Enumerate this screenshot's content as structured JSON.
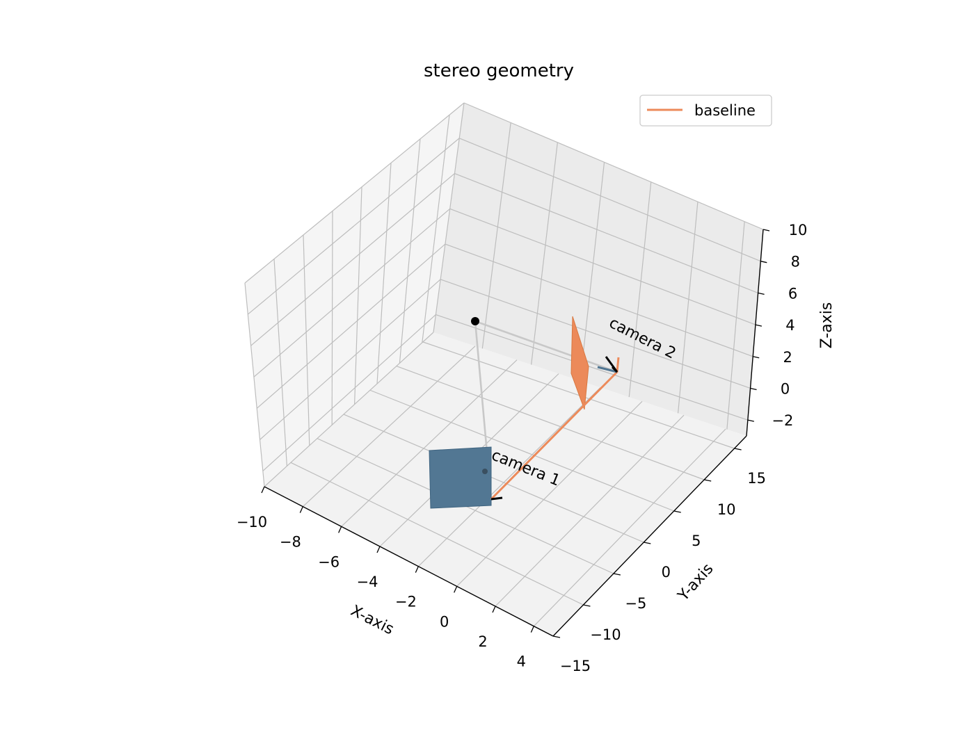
{
  "chart_data": {
    "type": "3d-line",
    "title": "stereo geometry",
    "xlabel": "X-axis",
    "ylabel": "Y-axis",
    "zlabel": "Z-axis",
    "xlim": [
      -10,
      5
    ],
    "ylim": [
      -15,
      17
    ],
    "zlim": [
      -3,
      10
    ],
    "x_ticks": [
      "−10",
      "−8",
      "−6",
      "−4",
      "−2",
      "0",
      "2",
      "4"
    ],
    "y_ticks": [
      "−15",
      "−10",
      "−5",
      "0",
      "5",
      "10",
      "15"
    ],
    "z_ticks": [
      "−2",
      "0",
      "2",
      "4",
      "6",
      "8",
      "10"
    ],
    "grid": true,
    "legend_position": "top-right",
    "series": [
      {
        "name": "baseline",
        "color": "#ec8a5a",
        "points": [
          [
            0,
            0,
            0
          ],
          [
            3,
            12,
            0.5
          ],
          [
            3,
            12,
            1.5
          ]
        ]
      }
    ],
    "world_point": {
      "xyz": [
        -8,
        6,
        1
      ],
      "color": "#000000"
    },
    "projection_rays": [
      {
        "from": [
          -8,
          6,
          1
        ],
        "to": [
          0,
          0,
          0
        ],
        "color": "#c8c8c8"
      },
      {
        "from": [
          -8,
          6,
          1
        ],
        "to": [
          3,
          12,
          0
        ],
        "color": "#c8c8c8"
      }
    ],
    "cameras": [
      {
        "label": "camera 1",
        "position": [
          0,
          0,
          0
        ],
        "plane_color": "#527793"
      },
      {
        "label": "camera 2",
        "position": [
          3,
          12,
          0
        ],
        "plane_color": "#ec8a5a"
      }
    ]
  }
}
